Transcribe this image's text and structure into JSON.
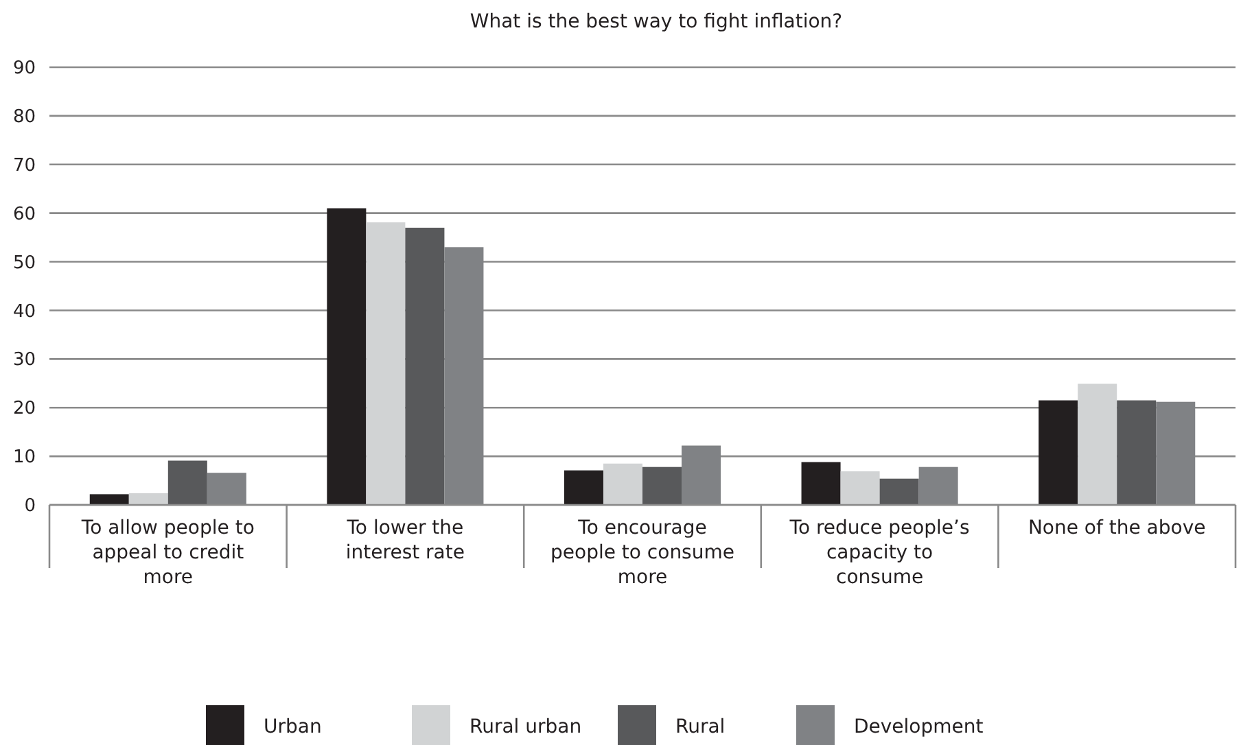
{
  "chart_data": {
    "type": "bar",
    "title": "What is the best way to fight inflation?",
    "categories": [
      "To allow people to appeal to credit more",
      "To lower the interest rate",
      "To encourage people to consume more",
      "To reduce people’s capacity to consume",
      "None of the above"
    ],
    "series": [
      {
        "name": "Urban",
        "color": "#231f20",
        "values": [
          2.2,
          61,
          7.1,
          8.8,
          21.5
        ]
      },
      {
        "name": "Rural urban",
        "color": "#d1d3d4",
        "values": [
          2.4,
          58.1,
          8.5,
          6.9,
          24.9
        ]
      },
      {
        "name": "Rural",
        "color": "#58595b",
        "values": [
          9.1,
          57,
          7.8,
          5.4,
          21.5
        ]
      },
      {
        "name": "Development",
        "color": "#808285",
        "values": [
          6.6,
          53,
          12.2,
          7.8,
          21.2
        ]
      }
    ],
    "ylim": [
      0,
      90
    ],
    "yticks": [
      0,
      10,
      20,
      30,
      40,
      50,
      60,
      70,
      80,
      90
    ],
    "grid": "y",
    "legend": "bottom"
  }
}
